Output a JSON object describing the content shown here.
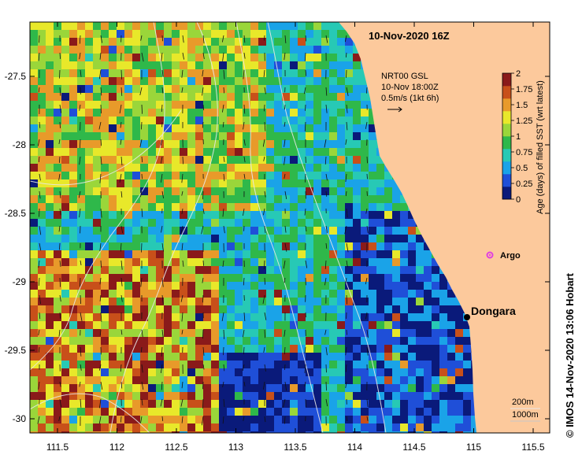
{
  "title": "10-Nov-2020 16Z",
  "current_legend": {
    "line1": "NRT00 GSL",
    "line2": "10-Nov 18:00Z",
    "line3": "0.5m/s (1kt 6h)"
  },
  "colorbar": {
    "label": "Age (days) of filled SST (wrt latest)",
    "ticks": [
      "0",
      "0.25",
      "0.5",
      "0.75",
      "1",
      "1.25",
      "1.5",
      "1.75",
      "2"
    ],
    "colors": [
      "#0a1a7a",
      "#1f4fd8",
      "#1aa3e8",
      "#27c9b5",
      "#2fb84a",
      "#9ad63a",
      "#e8e82a",
      "#e89a2a",
      "#c8501a",
      "#8a1a1a"
    ]
  },
  "x_ticks": [
    "111.5",
    "112",
    "112.5",
    "113",
    "113.5",
    "114",
    "114.5",
    "115",
    "115.5"
  ],
  "y_ticks": [
    "-27.5",
    "-28",
    "-28.5",
    "-29",
    "-29.5",
    "-30"
  ],
  "places": [
    {
      "name": "Dongara",
      "lon": 114.93,
      "lat": -29.25,
      "marker": "#000000"
    },
    {
      "name": "Argo",
      "lon": 115.12,
      "lat": -28.83,
      "marker": "#e040e0"
    }
  ],
  "bathymetry_legend": {
    "line1": "200m",
    "line2": "1000m"
  },
  "credit": "© IMOS 14-Nov-2020 13:06 Hobart",
  "colors": {
    "land": "#fcc99c",
    "deep": "#0a1a7a",
    "contour": "#e8e8e8"
  }
}
